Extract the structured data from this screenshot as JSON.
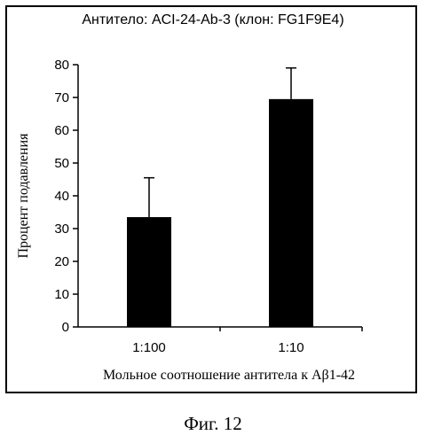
{
  "chart_data": {
    "type": "bar",
    "title": "Антитело: ACI-24-Ab-3 (клон: FG1F9E4)",
    "xlabel": "Мольное соотношение антитела к Aβ1-42",
    "ylabel": "Процент подавления",
    "categories": [
      "1:100",
      "1:10"
    ],
    "values": [
      33.5,
      69.5
    ],
    "error_upper": [
      45.5,
      79.0
    ],
    "ylim": [
      0,
      80
    ],
    "yticks": [
      0,
      10,
      20,
      30,
      40,
      50,
      60,
      70,
      80
    ],
    "grid": false,
    "legend": "none",
    "bar_color": "#000000"
  },
  "figure_caption": "Фиг. 12"
}
